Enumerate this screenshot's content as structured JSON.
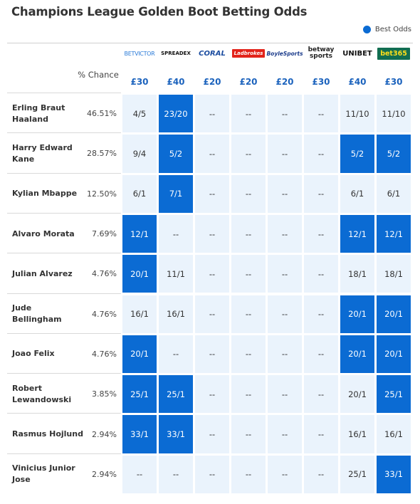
{
  "title": "Champions League Golden Boot Betting Odds",
  "legend": {
    "label": "Best Odds",
    "color": "#0b6bd3"
  },
  "chance_header": "% Chance",
  "bookmakers": [
    {
      "name": "BETVICTOR",
      "icon": "betvictor-logo",
      "bonus": "£30"
    },
    {
      "name": "SPREADEX",
      "icon": "spreadex-logo",
      "bonus": "£40"
    },
    {
      "name": "CORAL",
      "icon": "coral-logo",
      "bonus": "£20"
    },
    {
      "name": "Ladbrokes",
      "icon": "ladbrokes-logo",
      "bonus": "£20"
    },
    {
      "name": "BoyleSports",
      "icon": "boylesports-logo",
      "bonus": "£20"
    },
    {
      "name": "betway sports",
      "icon": "betway-logo",
      "bonus": "£30"
    },
    {
      "name": "UNIBET",
      "icon": "unibet-logo",
      "bonus": "£40"
    },
    {
      "name": "bet365",
      "icon": "bet365-logo",
      "bonus": "£30"
    }
  ],
  "players": [
    {
      "name": "Erling Braut Haaland",
      "chance": "46.51%",
      "odds": [
        "4/5",
        "23/20",
        "--",
        "--",
        "--",
        "--",
        "11/10",
        "11/10"
      ],
      "best": [
        false,
        true,
        false,
        false,
        false,
        false,
        false,
        false
      ]
    },
    {
      "name": "Harry Edward Kane",
      "chance": "28.57%",
      "odds": [
        "9/4",
        "5/2",
        "--",
        "--",
        "--",
        "--",
        "5/2",
        "5/2"
      ],
      "best": [
        false,
        true,
        false,
        false,
        false,
        false,
        true,
        true
      ]
    },
    {
      "name": "Kylian Mbappe",
      "chance": "12.50%",
      "odds": [
        "6/1",
        "7/1",
        "--",
        "--",
        "--",
        "--",
        "6/1",
        "6/1"
      ],
      "best": [
        false,
        true,
        false,
        false,
        false,
        false,
        false,
        false
      ]
    },
    {
      "name": "Alvaro Morata",
      "chance": "7.69%",
      "odds": [
        "12/1",
        "--",
        "--",
        "--",
        "--",
        "--",
        "12/1",
        "12/1"
      ],
      "best": [
        true,
        false,
        false,
        false,
        false,
        false,
        true,
        true
      ]
    },
    {
      "name": "Julian Alvarez",
      "chance": "4.76%",
      "odds": [
        "20/1",
        "11/1",
        "--",
        "--",
        "--",
        "--",
        "18/1",
        "18/1"
      ],
      "best": [
        true,
        false,
        false,
        false,
        false,
        false,
        false,
        false
      ]
    },
    {
      "name": "Jude Bellingham",
      "chance": "4.76%",
      "odds": [
        "16/1",
        "16/1",
        "--",
        "--",
        "--",
        "--",
        "20/1",
        "20/1"
      ],
      "best": [
        false,
        false,
        false,
        false,
        false,
        false,
        true,
        true
      ]
    },
    {
      "name": "Joao Felix",
      "chance": "4.76%",
      "odds": [
        "20/1",
        "--",
        "--",
        "--",
        "--",
        "--",
        "20/1",
        "20/1"
      ],
      "best": [
        true,
        false,
        false,
        false,
        false,
        false,
        true,
        true
      ]
    },
    {
      "name": "Robert Lewandowski",
      "chance": "3.85%",
      "odds": [
        "25/1",
        "25/1",
        "--",
        "--",
        "--",
        "--",
        "20/1",
        "25/1"
      ],
      "best": [
        true,
        true,
        false,
        false,
        false,
        false,
        false,
        true
      ]
    },
    {
      "name": "Rasmus Hojlund",
      "chance": "2.94%",
      "odds": [
        "33/1",
        "33/1",
        "--",
        "--",
        "--",
        "--",
        "16/1",
        "16/1"
      ],
      "best": [
        true,
        true,
        false,
        false,
        false,
        false,
        false,
        false
      ]
    },
    {
      "name": "Vinicius Junior Jose",
      "chance": "2.94%",
      "odds": [
        "--",
        "--",
        "--",
        "--",
        "--",
        "--",
        "25/1",
        "33/1"
      ],
      "best": [
        false,
        false,
        false,
        false,
        false,
        false,
        false,
        true
      ]
    }
  ]
}
